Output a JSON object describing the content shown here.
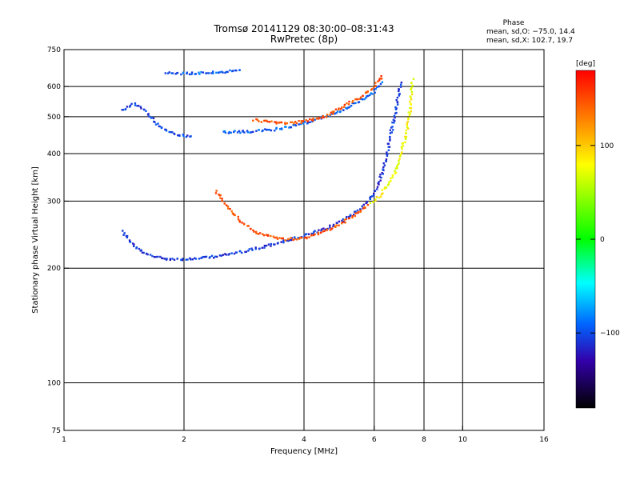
{
  "chart_data": {
    "type": "scatter",
    "title": "Tromsø 20141129 08:30:00–08:31:43",
    "subtitle": "RwPretec (8p)",
    "xlabel": "Frequency [MHz]",
    "ylabel": "Stationary phase Virtual Height [km]",
    "x_scale": "log",
    "y_scale": "log",
    "xlim": [
      1,
      16
    ],
    "ylim": [
      75,
      750
    ],
    "x_ticks": [
      1,
      2,
      4,
      6,
      8,
      10,
      16
    ],
    "y_ticks": [
      75,
      100,
      200,
      300,
      400,
      500,
      600,
      750
    ],
    "grid": true,
    "stats": {
      "header": "Phase",
      "line_o": "mean, sd,O: −75.0, 14.4",
      "line_x": "mean, sd,X: 102.7, 19.7"
    },
    "colorbar": {
      "label": "[deg]",
      "range": [
        -180,
        180
      ],
      "ticks": [
        100,
        0,
        -100
      ]
    },
    "traces": [
      {
        "mode": "O",
        "phase": -110,
        "points": [
          [
            1.4,
            250
          ],
          [
            1.5,
            228
          ],
          [
            1.6,
            218
          ],
          [
            1.7,
            214
          ],
          [
            1.8,
            212
          ],
          [
            2.0,
            211
          ],
          [
            2.2,
            212
          ],
          [
            2.5,
            216
          ],
          [
            2.8,
            221
          ],
          [
            3.2,
            228
          ],
          [
            3.6,
            236
          ],
          [
            4.0,
            243
          ],
          [
            4.5,
            253
          ],
          [
            5.0,
            266
          ],
          [
            5.5,
            285
          ],
          [
            5.8,
            300
          ],
          [
            6.0,
            315
          ],
          [
            6.2,
            340
          ],
          [
            6.4,
            380
          ],
          [
            6.6,
            450
          ],
          [
            6.8,
            520
          ],
          [
            6.9,
            570
          ],
          [
            7.0,
            620
          ]
        ]
      },
      {
        "mode": "X",
        "phase": 95,
        "points": [
          [
            5.9,
            295
          ],
          [
            6.2,
            310
          ],
          [
            6.5,
            330
          ],
          [
            6.8,
            360
          ],
          [
            7.0,
            400
          ],
          [
            7.2,
            440
          ],
          [
            7.3,
            480
          ],
          [
            7.4,
            530
          ],
          [
            7.45,
            580
          ],
          [
            7.5,
            630
          ]
        ]
      },
      {
        "mode": "X",
        "phase": 150,
        "points": [
          [
            2.4,
            320
          ],
          [
            2.6,
            285
          ],
          [
            2.8,
            263
          ],
          [
            3.0,
            250
          ],
          [
            3.3,
            242
          ],
          [
            3.6,
            238
          ],
          [
            4.0,
            240
          ],
          [
            4.5,
            250
          ],
          [
            5.0,
            263
          ],
          [
            5.5,
            280
          ],
          [
            5.8,
            293
          ]
        ]
      },
      {
        "mode": "O",
        "phase": -95,
        "points": [
          [
            2.5,
            455
          ],
          [
            3.0,
            457
          ],
          [
            3.5,
            465
          ],
          [
            4.0,
            480
          ],
          [
            4.5,
            500
          ],
          [
            5.0,
            520
          ],
          [
            5.5,
            550
          ],
          [
            6.0,
            580
          ],
          [
            6.3,
            620
          ]
        ]
      },
      {
        "mode": "X",
        "phase": 150,
        "points": [
          [
            3.0,
            490
          ],
          [
            3.5,
            480
          ],
          [
            4.0,
            485
          ],
          [
            4.5,
            500
          ],
          [
            5.0,
            530
          ],
          [
            5.5,
            560
          ],
          [
            6.0,
            600
          ],
          [
            6.3,
            640
          ]
        ]
      },
      {
        "mode": "O",
        "phase": -105,
        "points": [
          [
            1.4,
            520
          ],
          [
            1.5,
            540
          ],
          [
            1.6,
            520
          ],
          [
            1.7,
            480
          ],
          [
            1.8,
            460
          ],
          [
            1.9,
            450
          ],
          [
            2.0,
            445
          ],
          [
            2.1,
            440
          ]
        ]
      },
      {
        "mode": "O",
        "phase": -95,
        "points": [
          [
            1.8,
            650
          ],
          [
            2.0,
            650
          ],
          [
            2.2,
            650
          ],
          [
            2.5,
            655
          ],
          [
            2.8,
            660
          ]
        ]
      }
    ]
  }
}
